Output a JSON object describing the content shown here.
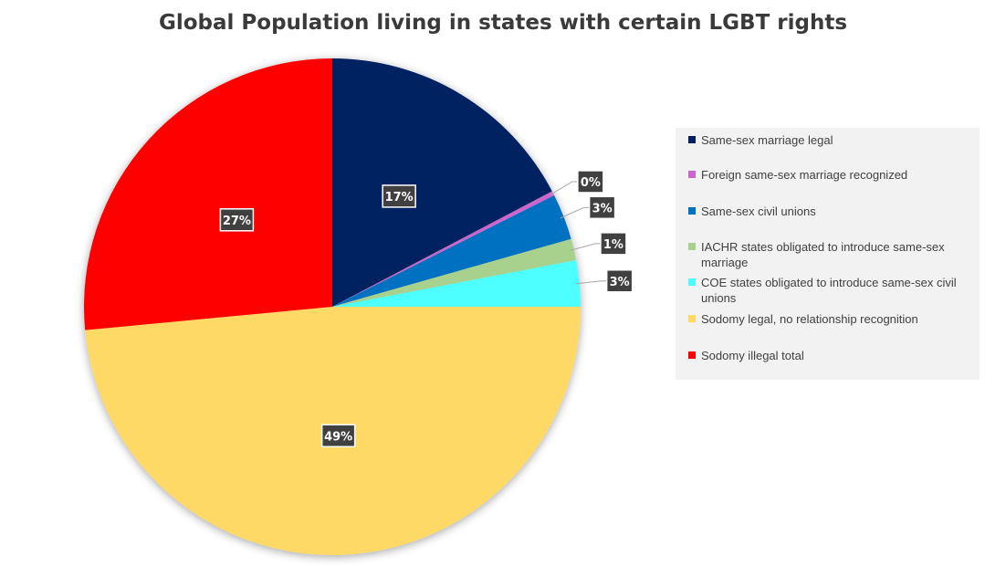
{
  "chart_data": {
    "type": "pie",
    "title": "Global Population living in states with certain LGBT rights",
    "slices": [
      {
        "name": "Same-sex marriage legal",
        "value": 17.3,
        "label": "17%",
        "color": "#002060"
      },
      {
        "name": "Foreign same-sex marriage recognized",
        "value": 0.3,
        "label": "0%",
        "color": "#cc66cc"
      },
      {
        "name": "Same-sex civil unions",
        "value": 3.0,
        "label": "3%",
        "color": "#0070c0"
      },
      {
        "name": "IACHR states obligated to introduce same-sex marriage",
        "value": 1.4,
        "label": "1%",
        "color": "#a9d18e"
      },
      {
        "name": "COE states obligated to introduce same-sex civil unions",
        "value": 3.0,
        "label": "3%",
        "color": "#4dffff"
      },
      {
        "name": "Sodomy legal, no relationship recognition",
        "value": 48.5,
        "label": "49%",
        "color": "#ffd966"
      },
      {
        "name": "Sodomy illegal total",
        "value": 26.5,
        "label": "27%",
        "color": "#ff0000"
      }
    ],
    "legend_position": "right",
    "start_angle_deg": 0,
    "direction": "clockwise"
  }
}
